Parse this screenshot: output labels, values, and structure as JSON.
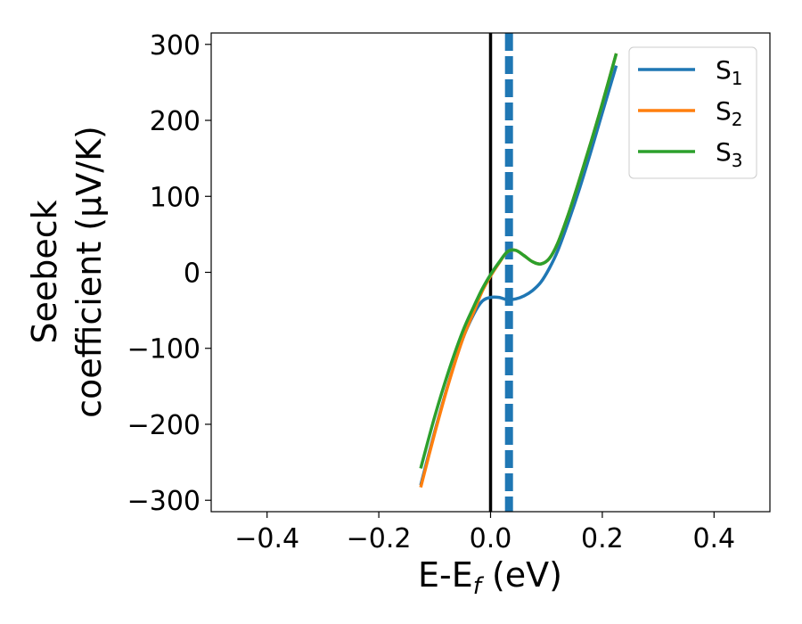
{
  "chart_data": {
    "type": "line",
    "xlabel": {
      "main": "E-E",
      "sub": "f",
      "suffix": " (eV)"
    },
    "ylabel": {
      "line1": "Seebeck",
      "line2": "coefficient  (μV/K)"
    },
    "xlim": [
      -0.5,
      0.5
    ],
    "ylim": [
      -315,
      315
    ],
    "xticks": [
      -0.4,
      -0.2,
      0.0,
      0.2,
      0.4
    ],
    "xtick_labels": [
      "−0.4",
      "−0.2",
      "0.0",
      "0.2",
      "0.4"
    ],
    "yticks": [
      300,
      200,
      100,
      0,
      -100,
      -200,
      -300
    ],
    "ytick_labels": [
      "300",
      "200",
      "100",
      "0",
      "−100",
      "−200",
      "−300"
    ],
    "grid": false,
    "legend_position": "top-right",
    "vertical_lines": [
      {
        "x": 0.0,
        "color": "#000000",
        "style": "solid"
      },
      {
        "x": 0.033,
        "color": "#1f77b4",
        "style": "dashed"
      }
    ],
    "series": [
      {
        "name": "S",
        "sub": "1",
        "color": "#1f77b4",
        "x": [
          -0.125,
          -0.1,
          -0.075,
          -0.05,
          -0.03,
          -0.015,
          0.0,
          0.015,
          0.03,
          0.045,
          0.06,
          0.075,
          0.09,
          0.105,
          0.12,
          0.14,
          0.16,
          0.18,
          0.2,
          0.225
        ],
        "y": [
          -280,
          -210,
          -145,
          -88,
          -55,
          -38,
          -33,
          -33,
          -36,
          -35,
          -31,
          -24,
          -13,
          5,
          28,
          68,
          112,
          160,
          210,
          272
        ]
      },
      {
        "name": "S",
        "sub": "2",
        "color": "#ff7f0e",
        "x": [
          -0.125,
          -0.1,
          -0.075,
          -0.05,
          -0.03,
          -0.015,
          0.0,
          0.015,
          0.03,
          0.045,
          0.06,
          0.075,
          0.09,
          0.105,
          0.12,
          0.14,
          0.16,
          0.18,
          0.2,
          0.225
        ],
        "y": [
          -283,
          -212,
          -146,
          -88,
          -52,
          -25,
          -5,
          12,
          27,
          29,
          22,
          14,
          11,
          18,
          38,
          78,
          124,
          172,
          222,
          288
        ]
      },
      {
        "name": "S",
        "sub": "3",
        "color": "#2ca02c",
        "x": [
          -0.125,
          -0.1,
          -0.075,
          -0.05,
          -0.03,
          -0.015,
          0.0,
          0.015,
          0.03,
          0.045,
          0.06,
          0.075,
          0.09,
          0.105,
          0.12,
          0.14,
          0.16,
          0.18,
          0.2,
          0.225
        ],
        "y": [
          -258,
          -190,
          -130,
          -78,
          -45,
          -22,
          -3,
          13,
          27,
          29,
          22,
          14,
          11,
          18,
          38,
          78,
          124,
          172,
          222,
          288
        ]
      }
    ]
  }
}
